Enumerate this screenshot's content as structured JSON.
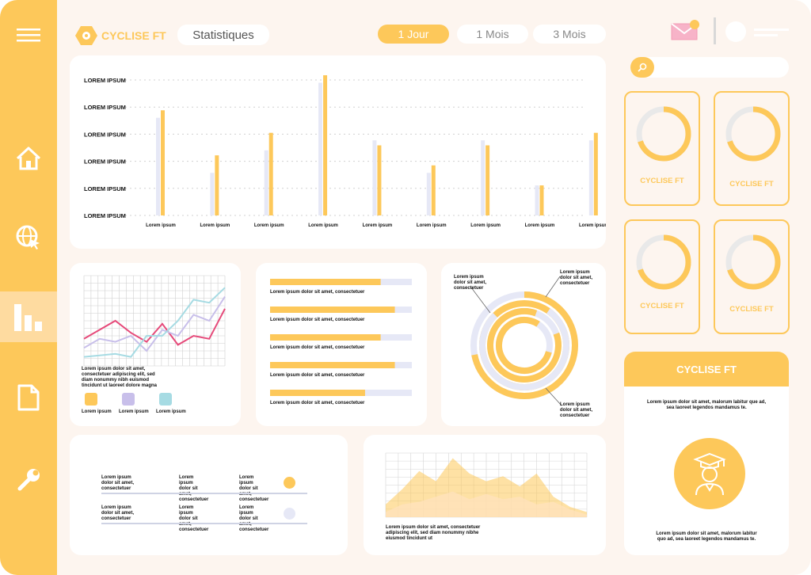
{
  "brand": {
    "name": "CYCLISE FT",
    "color": "#fdc85a"
  },
  "header": {
    "page_title": "Statistiques",
    "periods": [
      "1 Jour",
      "1 Mois",
      "3 Mois"
    ],
    "active_period": "1 Jour"
  },
  "sidebar": {
    "items": [
      {
        "icon": "menu-icon"
      },
      {
        "icon": "home-icon"
      },
      {
        "icon": "globe-cursor-icon"
      },
      {
        "icon": "bar-chart-icon",
        "active": true
      },
      {
        "icon": "document-icon"
      },
      {
        "icon": "wrench-icon"
      }
    ]
  },
  "chart_data": [
    {
      "type": "bar",
      "yticks": [
        "LOREM IPSUM",
        "LOREM IPSUM",
        "LOREM IPSUM",
        "LOREM IPSUM",
        "LOREM IPSUM",
        "LOREM IPSUM"
      ],
      "categories": [
        "Lorem ipsum",
        "Lorem ipsum",
        "Lorem ipsum",
        "Lorem ipsum",
        "Lorem ipsum",
        "Lorem ipsum",
        "Lorem ipsum",
        "Lorem ipsum",
        "Lorem ipsum"
      ],
      "series": [
        {
          "values": [
            3.9,
            1.7,
            2.6,
            5.3,
            3.0,
            1.7,
            3.0,
            1.2,
            3.0
          ],
          "color": "#e6e8f6"
        },
        {
          "values": [
            4.2,
            2.4,
            3.3,
            5.6,
            2.8,
            2.0,
            2.8,
            1.2,
            3.3
          ],
          "color": "#fdc85a"
        }
      ],
      "ylim": [
        0,
        5.6
      ],
      "grid": true
    },
    {
      "type": "line",
      "x": [
        0,
        1,
        2,
        3,
        4,
        5,
        6,
        7,
        8,
        9
      ],
      "series": [
        {
          "values": [
            1.8,
            2.4,
            3.0,
            2.2,
            1.6,
            2.8,
            1.4,
            2.0,
            1.8,
            3.8
          ],
          "color": "#e64a7a"
        },
        {
          "values": [
            1.2,
            1.8,
            1.6,
            2.0,
            1.0,
            2.4,
            2.0,
            3.4,
            3.0,
            4.6
          ],
          "color": "#c8bfea"
        },
        {
          "values": [
            0.6,
            0.7,
            0.8,
            0.6,
            2.0,
            2.0,
            3.0,
            4.4,
            4.2,
            5.2
          ],
          "color": "#a6dbe3"
        }
      ],
      "ylim": [
        0,
        6
      ],
      "grid": true
    },
    {
      "type": "bar",
      "orientation": "horizontal",
      "categories": [
        "Lorem ipsum dolor sit amet, consectetuer",
        "Lorem ipsum dolor sit amet, consectetuer",
        "Lorem ipsum dolor sit amet, consectetuer",
        "Lorem ipsum dolor sit amet, consectetuer",
        "Lorem ipsum dolor sit amet, consectetuer"
      ],
      "values": [
        0.78,
        0.88,
        0.78,
        0.88,
        0.67
      ],
      "ylim": [
        0,
        1
      ]
    },
    {
      "type": "pie",
      "labels": [
        "Lorem ipsum dolor sit amet, consectetuer",
        "Lorem ipsum dolor sit amet, consectetuer",
        "Lorem ipsum dolor sit amet, consectetuer"
      ],
      "rings": [
        0.72,
        0.78,
        0.86,
        0.8
      ]
    },
    {
      "type": "area",
      "x": [
        0,
        1,
        2,
        3,
        4,
        5,
        6,
        7,
        8,
        9,
        10,
        11,
        12
      ],
      "series": [
        {
          "values": [
            1.0,
            2.2,
            3.6,
            2.8,
            4.6,
            3.4,
            2.8,
            3.2,
            2.4,
            3.4,
            1.6,
            0.8,
            0.4
          ]
        },
        {
          "values": [
            0.4,
            1.0,
            1.2,
            1.6,
            2.0,
            1.4,
            1.8,
            1.4,
            1.6,
            1.0,
            1.2,
            0.6,
            0.2
          ]
        }
      ],
      "ylim": [
        0,
        5
      ],
      "grid": true
    }
  ],
  "line_panel": {
    "caption": "Lorem ipsum dolor sit amet, consectetuer adipiscing elit, sed diam nonummy nibh euismod tincidunt ut laoreet dolore magna",
    "legend": [
      {
        "label": "Lorem ipsum",
        "color": "#fdc85a"
      },
      {
        "label": "Lorem ipsum",
        "color": "#c8bfea"
      },
      {
        "label": "Lorem ipsum",
        "color": "#a6dbe3"
      }
    ]
  },
  "table_panel": {
    "rows": [
      {
        "cells": [
          "Lorem ipsum dolor sit amet, consectetuer",
          "Lorem ipsum dolor sit amet, consectetuer",
          "Lorem ipsum dolor sit amet, consectetuer"
        ],
        "dot": "#fdc85a"
      },
      {
        "cells": [
          "Lorem ipsum dolor sit amet, consectetuer",
          "Lorem ipsum dolor sit amet, consectetuer",
          "Lorem ipsum dolor sit amet, consectetuer"
        ],
        "dot": "#e6e8f6"
      }
    ]
  },
  "area_panel": {
    "caption": "Lorem ipsum dolor sit amet, consectetuer adipiscing elit, sed diam nonummy nibhe eiusmod tincidunt ut"
  },
  "rings": [
    {
      "label": "CYCLISE FT",
      "value": 0.7
    },
    {
      "label": "CYCLISE FT",
      "value": 0.7
    },
    {
      "label": "CYCLISE FT",
      "value": 0.7
    },
    {
      "label": "CYCLISE FT",
      "value": 0.7
    }
  ],
  "profile_card": {
    "title": "CYCLISE FT",
    "text1": "Lorem ipsum dolor sit amet, malorum labitur que ad, sea laoreet legendos mandamus te.",
    "text2": "Lorem ipsum dolor sit amet, malorum labitur quo ad, sea laoreet legendos mandamus te."
  }
}
